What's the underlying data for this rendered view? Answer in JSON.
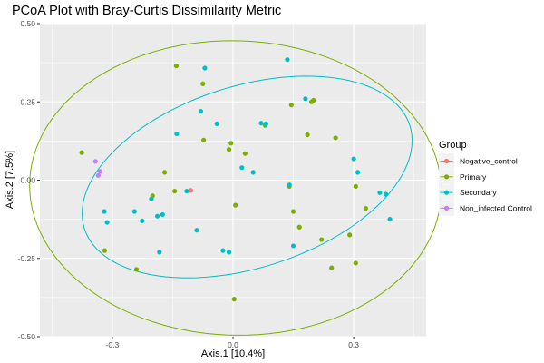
{
  "chart_data": {
    "type": "scatter",
    "title": "PCoA Plot with Bray-Curtis Dissimilarity Metric",
    "xlabel": "Axis.1   [10.4%]",
    "ylabel": "Axis.2   [7.5%]",
    "xlim": [
      -0.48,
      0.48
    ],
    "ylim": [
      -0.5,
      0.5
    ],
    "x_ticks": [
      -0.3,
      0.0,
      0.3
    ],
    "x_tick_labels": [
      "-0.3",
      "0.0",
      "0.3"
    ],
    "y_ticks": [
      -0.5,
      -0.25,
      0.0,
      0.25,
      0.5
    ],
    "y_tick_labels": [
      "-0.50",
      "-0.25",
      "0.00",
      "0.25",
      "0.50"
    ],
    "grid": true,
    "legend_title": "Group",
    "legend_position": "right",
    "series": [
      {
        "name": "Negative_control",
        "color": "#F8766D",
        "points": [
          [
            -0.105,
            -0.033
          ]
        ]
      },
      {
        "name": "Primary",
        "color": "#7CAE00",
        "points": [
          [
            -0.376,
            0.088
          ],
          [
            -0.319,
            -0.225
          ],
          [
            -0.24,
            -0.285
          ],
          [
            -0.2,
            -0.05
          ],
          [
            -0.17,
            0.025
          ],
          [
            -0.145,
            -0.035
          ],
          [
            -0.141,
            0.365
          ],
          [
            -0.075,
            0.308
          ],
          [
            -0.073,
            0.128
          ],
          [
            -0.01,
            0.098
          ],
          [
            -0.005,
            0.118
          ],
          [
            0.006,
            -0.08
          ],
          [
            0.003,
            -0.38
          ],
          [
            0.03,
            0.085
          ],
          [
            0.08,
            0.175
          ],
          [
            0.145,
            0.24
          ],
          [
            0.14,
            -0.02
          ],
          [
            0.15,
            -0.1
          ],
          [
            0.165,
            -0.15
          ],
          [
            0.185,
            0.145
          ],
          [
            0.195,
            0.25
          ],
          [
            0.2,
            0.255
          ],
          [
            0.22,
            -0.19
          ],
          [
            0.245,
            -0.28
          ],
          [
            0.255,
            0.135
          ],
          [
            0.29,
            -0.175
          ],
          [
            0.305,
            -0.02
          ],
          [
            0.305,
            -0.265
          ],
          [
            0.33,
            -0.09
          ]
        ]
      },
      {
        "name": "Secondary",
        "color": "#00BFC4",
        "points": [
          [
            -0.32,
            -0.1
          ],
          [
            -0.313,
            -0.135
          ],
          [
            -0.245,
            -0.1
          ],
          [
            -0.226,
            -0.13
          ],
          [
            -0.203,
            -0.06
          ],
          [
            -0.188,
            -0.115
          ],
          [
            -0.183,
            -0.23
          ],
          [
            -0.175,
            -0.11
          ],
          [
            -0.14,
            0.148
          ],
          [
            -0.115,
            -0.035
          ],
          [
            -0.09,
            -0.16
          ],
          [
            -0.08,
            0.22
          ],
          [
            -0.07,
            0.358
          ],
          [
            -0.04,
            0.18
          ],
          [
            -0.025,
            -0.225
          ],
          [
            -0.01,
            -0.23
          ],
          [
            0.022,
            0.04
          ],
          [
            0.05,
            0.025
          ],
          [
            0.07,
            0.182
          ],
          [
            0.082,
            0.18
          ],
          [
            0.135,
            0.385
          ],
          [
            0.14,
            -0.015
          ],
          [
            0.15,
            -0.21
          ],
          [
            0.18,
            0.26
          ],
          [
            0.3,
            0.068
          ],
          [
            0.31,
            0.025
          ],
          [
            0.365,
            -0.04
          ],
          [
            0.38,
            -0.045
          ],
          [
            0.39,
            -0.125
          ]
        ]
      },
      {
        "name": "Non_infected Control",
        "color": "#C77CFF",
        "points": [
          [
            -0.342,
            0.06
          ],
          [
            -0.335,
            0.015
          ],
          [
            -0.33,
            0.028
          ]
        ]
      }
    ],
    "ellipses": [
      {
        "series": "Primary",
        "color": "#7CAE00",
        "cx": 0.006,
        "cy": -0.025,
        "rx": 0.512,
        "ry": 0.47,
        "angle_deg": -6
      },
      {
        "series": "Secondary",
        "color": "#00BFC4",
        "cx": 0.035,
        "cy": 0.01,
        "rx": 0.44,
        "ry": 0.28,
        "angle_deg": 28
      }
    ]
  }
}
